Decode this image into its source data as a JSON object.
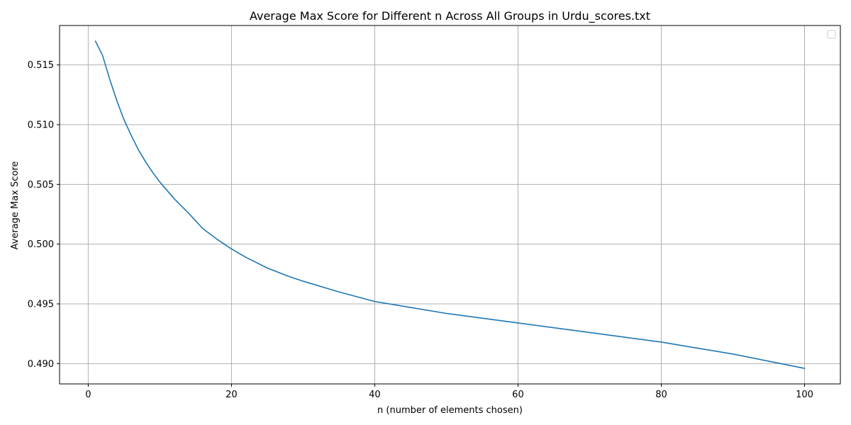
{
  "chart_data": {
    "type": "line",
    "title": "Average Max Score for Different n Across All Groups in Urdu_scores.txt",
    "xlabel": "n (number of elements chosen)",
    "ylabel": "Average Max Score",
    "xlim": [
      -4,
      105
    ],
    "ylim": [
      0.4883,
      0.5183
    ],
    "xticks": [
      0,
      20,
      40,
      60,
      80,
      100
    ],
    "xtick_labels": [
      "0",
      "20",
      "40",
      "60",
      "80",
      "100"
    ],
    "yticks": [
      0.49,
      0.495,
      0.5,
      0.505,
      0.51,
      0.515
    ],
    "ytick_labels": [
      "0.490",
      "0.495",
      "0.500",
      "0.505",
      "0.510",
      "0.515"
    ],
    "grid": true,
    "legend": "top-right, empty",
    "series": [
      {
        "color": "#1f77b4",
        "x": [
          1,
          2,
          3,
          4,
          5,
          6,
          7,
          8,
          9,
          10,
          12,
          14,
          16,
          18,
          20,
          22,
          25,
          28,
          30,
          35,
          40,
          45,
          50,
          55,
          60,
          65,
          70,
          75,
          80,
          85,
          90,
          95,
          100
        ],
        "y": [
          0.517,
          0.5158,
          0.5138,
          0.512,
          0.5104,
          0.5091,
          0.5079,
          0.5069,
          0.506,
          0.5052,
          0.5038,
          0.5026,
          0.5013,
          0.5004,
          0.4996,
          0.4989,
          0.498,
          0.4973,
          0.4969,
          0.496,
          0.4952,
          0.4947,
          0.4942,
          0.4938,
          0.4934,
          0.493,
          0.4926,
          0.4922,
          0.4918,
          0.4913,
          0.4908,
          0.4902,
          0.4896
        ]
      }
    ]
  }
}
